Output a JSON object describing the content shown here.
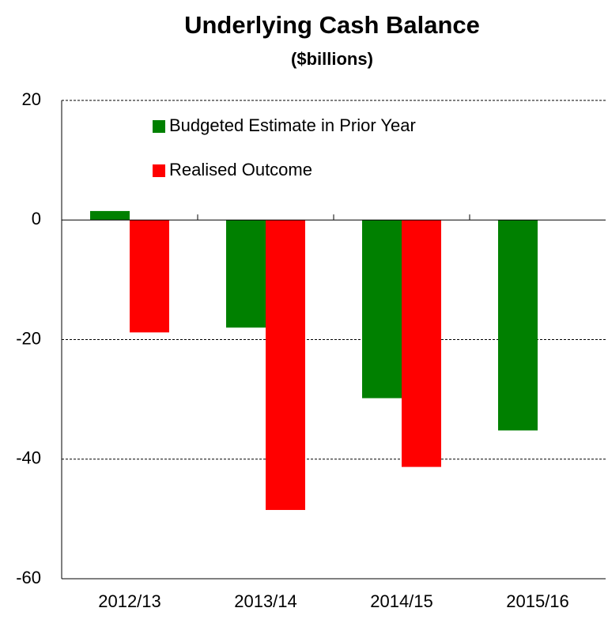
{
  "chart_data": {
    "type": "bar",
    "title": "Underlying Cash Balance",
    "subtitle": "($billions)",
    "categories": [
      "2012/13",
      "2013/14",
      "2014/15",
      "2015/16"
    ],
    "series": [
      {
        "name": "Budgeted Estimate in Prior Year",
        "color": "#008000",
        "values": [
          1.5,
          -18.0,
          -29.8,
          -35.2
        ]
      },
      {
        "name": "Realised Outcome",
        "color": "#ff0000",
        "values": [
          -18.8,
          -48.5,
          -41.3,
          null
        ]
      }
    ],
    "ylim": [
      -60,
      20
    ],
    "yticks": [
      -60,
      -40,
      -20,
      0,
      20
    ],
    "grid": true,
    "legend": "top-left"
  }
}
